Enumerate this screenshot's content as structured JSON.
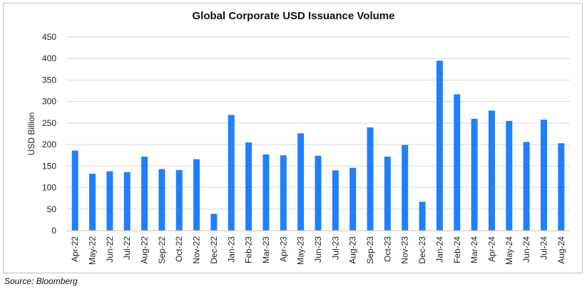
{
  "chart_data": {
    "type": "bar",
    "title": "Global Corporate USD Issuance Volume",
    "ylabel": "USD Billion",
    "xlabel": "",
    "ylim": [
      0,
      450
    ],
    "yticks": [
      0,
      50,
      100,
      150,
      200,
      250,
      300,
      350,
      400,
      450
    ],
    "grid": true,
    "bar_color": "#1f7fff",
    "categories": [
      "Apr-22",
      "May-22",
      "Jun-22",
      "Jul-22",
      "Aug-22",
      "Sep-22",
      "Oct-22",
      "Nov-22",
      "Dec-22",
      "Jan-23",
      "Feb-23",
      "Mar-23",
      "Apr-23",
      "May-23",
      "Jun-23",
      "Jul-23",
      "Aug-23",
      "Sep-23",
      "Oct-23",
      "Nov-23",
      "Dec-23",
      "Jan-24",
      "Feb-24",
      "Mar-24",
      "Apr-24",
      "May-24",
      "Jun-24",
      "Jul-24",
      "Aug-24"
    ],
    "values": [
      186,
      132,
      138,
      136,
      172,
      143,
      141,
      166,
      39,
      269,
      205,
      177,
      175,
      226,
      174,
      140,
      146,
      240,
      172,
      199,
      67,
      395,
      317,
      260,
      279,
      255,
      206,
      258,
      203
    ]
  },
  "source": "Source: Bloomberg"
}
